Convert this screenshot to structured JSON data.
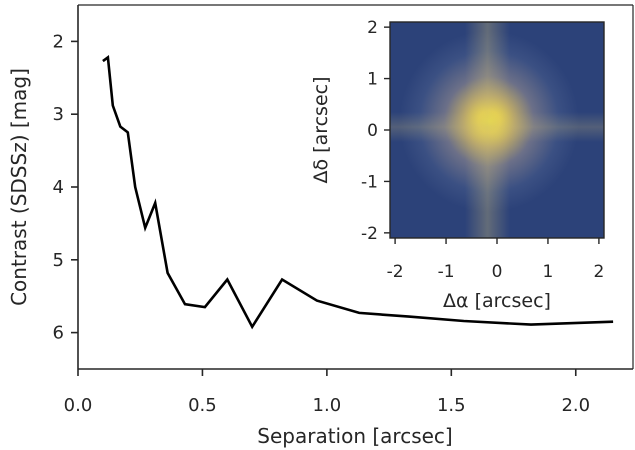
{
  "chart_data": [
    {
      "type": "line",
      "xlabel": "Separation [arcsec]",
      "ylabel": "Contrast (SDSSz) [mag]",
      "xlim": [
        0.0,
        2.23
      ],
      "ylim": [
        6.5,
        1.5
      ],
      "y_inverted": true,
      "xticks": [
        "0.0",
        "0.5",
        "1.0",
        "1.5",
        "2.0"
      ],
      "yticks": [
        "2",
        "3",
        "4",
        "5",
        "6"
      ],
      "series": [
        {
          "color": "#000000",
          "x": [
            0.1,
            0.12,
            0.14,
            0.17,
            0.2,
            0.23,
            0.27,
            0.31,
            0.36,
            0.43,
            0.51,
            0.6,
            0.7,
            0.82,
            0.96,
            1.13,
            1.33,
            1.55,
            1.82,
            2.15
          ],
          "y": [
            2.27,
            2.22,
            2.88,
            3.17,
            3.25,
            4.0,
            4.56,
            4.22,
            5.18,
            5.61,
            5.65,
            5.27,
            5.92,
            5.27,
            5.56,
            5.73,
            5.78,
            5.84,
            5.89,
            5.85
          ]
        }
      ]
    },
    {
      "type": "heatmap",
      "xlabel": "Δα [arcsec]",
      "ylabel": "Δδ [arcsec]",
      "xlim": [
        -2.1,
        2.1
      ],
      "ylim": [
        -2.1,
        2.1
      ],
      "xticks": [
        "-2",
        "-1",
        "0",
        "1",
        "2"
      ],
      "yticks": [
        "2",
        "1",
        "0",
        "-1",
        "-2"
      ],
      "source_center": [
        -0.25,
        0.05
      ],
      "colormap": [
        "#28407c",
        "#3a5185",
        "#7f7e8a",
        "#cbb767",
        "#f3e53c"
      ],
      "background_color": "#2c4279"
    }
  ]
}
